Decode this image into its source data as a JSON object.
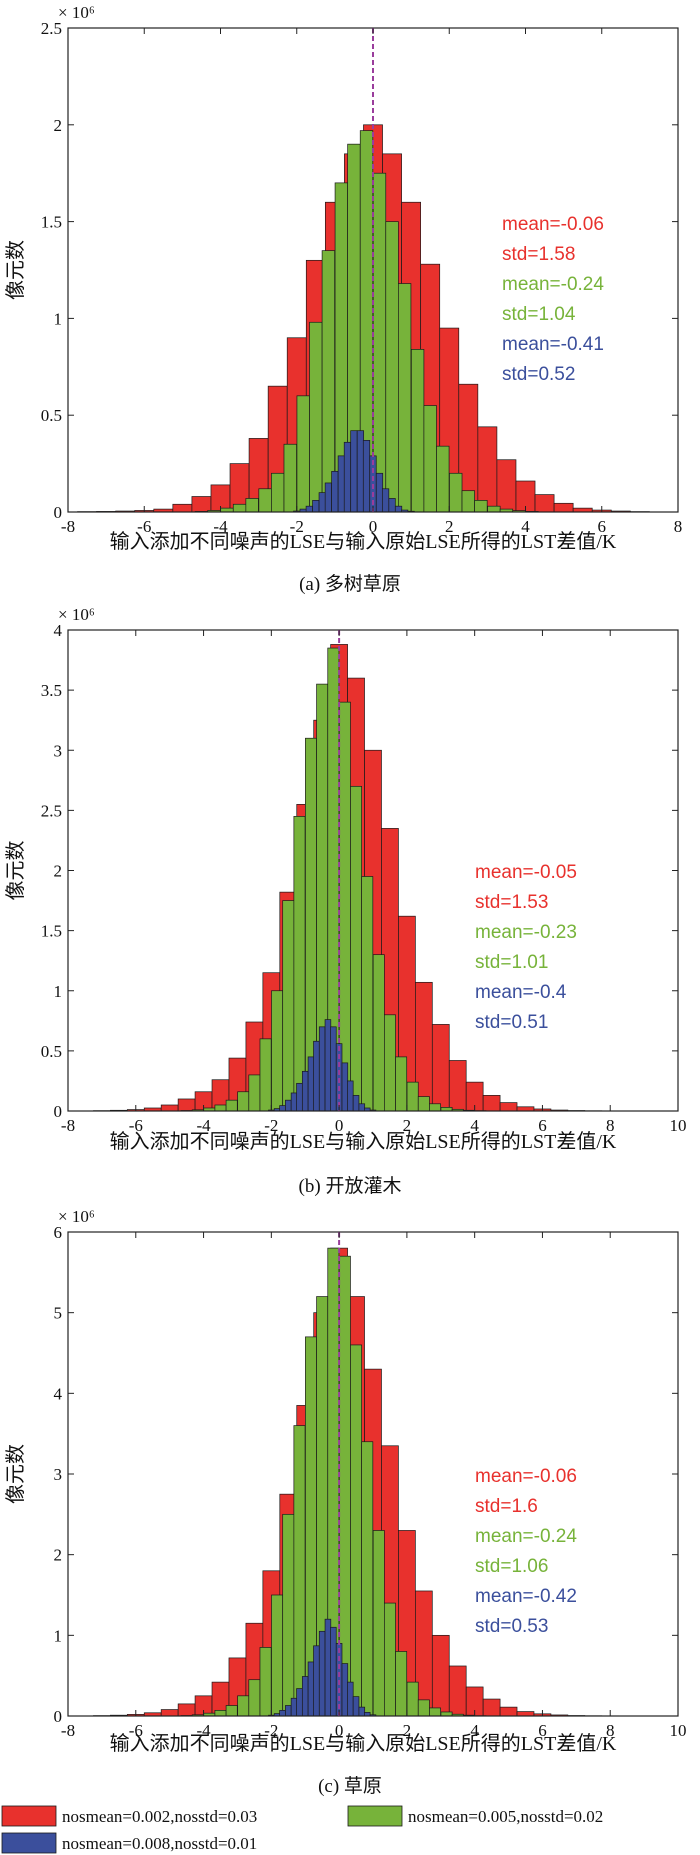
{
  "colors": {
    "red": "#e8312d",
    "green": "#77b33a",
    "blue": "#3b4f9c",
    "median": "#9a3d9c"
  },
  "legend": [
    {
      "label": "nosmean=0.002,nosstd=0.03",
      "color": "#e8312d"
    },
    {
      "label": "nosmean=0.005,nosstd=0.02",
      "color": "#77b33a"
    },
    {
      "label": "nosmean=0.008,nosstd=0.01",
      "color": "#3b4f9c"
    }
  ],
  "chart_data": [
    {
      "type": "bar",
      "caption": "(a) 多树草原",
      "xlabel": "输入添加不同噪声的LSE与输入原始LSE所得的LST差值/K",
      "ylabel": "像元数",
      "y_exponent": "× 10⁶",
      "xlim": [
        -8,
        8
      ],
      "ylim": [
        0,
        2.5
      ],
      "xticks": [
        "-8",
        "-6",
        "-4",
        "-2",
        "0",
        "2",
        "4",
        "6",
        "8"
      ],
      "yticks": [
        "0",
        "0.5",
        "1",
        "1.5",
        "2",
        "2.5"
      ],
      "median_line_x": 0,
      "series": [
        {
          "name": "nosmean=0.002,nosstd=0.03",
          "bin_width": 0.5,
          "x": [
            -7.5,
            -7,
            -6.5,
            -6,
            -5.5,
            -5,
            -4.5,
            -4,
            -3.5,
            -3,
            -2.5,
            -2,
            -1.5,
            -1,
            -0.5,
            0,
            0.5,
            1,
            1.5,
            2,
            2.5,
            3,
            3.5,
            4,
            4.5,
            5,
            5.5,
            6,
            6.5,
            7
          ],
          "values": [
            0.002,
            0.003,
            0.005,
            0.008,
            0.015,
            0.04,
            0.08,
            0.14,
            0.25,
            0.38,
            0.65,
            0.9,
            1.3,
            1.6,
            1.85,
            2.0,
            1.85,
            1.6,
            1.28,
            0.95,
            0.66,
            0.44,
            0.27,
            0.16,
            0.09,
            0.045,
            0.02,
            0.01,
            0.005,
            0.002
          ]
        },
        {
          "name": "nosmean=0.005,nosstd=0.02",
          "bin_width": 0.33,
          "x": [
            -4.5,
            -4.17,
            -3.83,
            -3.5,
            -3.17,
            -2.83,
            -2.5,
            -2.17,
            -1.83,
            -1.5,
            -1.17,
            -0.83,
            -0.5,
            -0.17,
            0.17,
            0.5,
            0.83,
            1.17,
            1.5,
            1.83,
            2.17,
            2.5,
            2.83,
            3.17,
            3.5,
            3.83,
            4.17
          ],
          "values": [
            0.003,
            0.008,
            0.02,
            0.04,
            0.07,
            0.12,
            0.2,
            0.35,
            0.6,
            0.98,
            1.35,
            1.7,
            1.9,
            1.97,
            1.75,
            1.5,
            1.18,
            0.84,
            0.55,
            0.34,
            0.2,
            0.11,
            0.06,
            0.03,
            0.015,
            0.007,
            0.003
          ]
        },
        {
          "name": "nosmean=0.008,nosstd=0.01",
          "bin_width": 0.17,
          "x": [
            -2,
            -1.83,
            -1.67,
            -1.5,
            -1.33,
            -1.17,
            -1,
            -0.83,
            -0.67,
            -0.5,
            -0.33,
            -0.17,
            0,
            0.17,
            0.33,
            0.5,
            0.67,
            0.83,
            1
          ],
          "values": [
            0.005,
            0.015,
            0.03,
            0.06,
            0.1,
            0.15,
            0.21,
            0.29,
            0.36,
            0.42,
            0.42,
            0.37,
            0.29,
            0.2,
            0.12,
            0.07,
            0.03,
            0.01,
            0.004
          ]
        }
      ],
      "stats": [
        {
          "text": "mean=-0.06",
          "color": "#e8312d"
        },
        {
          "text": "std=1.58",
          "color": "#e8312d"
        },
        {
          "text": "mean=-0.24",
          "color": "#77b33a"
        },
        {
          "text": "std=1.04",
          "color": "#77b33a"
        },
        {
          "text": "mean=-0.41",
          "color": "#3b4f9c"
        },
        {
          "text": "std=0.52",
          "color": "#3b4f9c"
        }
      ]
    },
    {
      "type": "bar",
      "caption": "(b) 开放灌木",
      "xlabel": "输入添加不同噪声的LSE与输入原始LSE所得的LST差值/K",
      "ylabel": "像元数",
      "y_exponent": "× 10⁶",
      "xlim": [
        -8,
        10
      ],
      "ylim": [
        0,
        4
      ],
      "xticks": [
        "-8",
        "-6",
        "-4",
        "-2",
        "0",
        "2",
        "4",
        "6",
        "8",
        "10"
      ],
      "yticks": [
        "0",
        "0.5",
        "1",
        "1.5",
        "2",
        "2.5",
        "3",
        "3.5",
        "4"
      ],
      "median_line_x": 0,
      "series": [
        {
          "name": "nosmean=0.002,nosstd=0.03",
          "bin_width": 0.5,
          "x": [
            -7,
            -6.5,
            -6,
            -5.5,
            -5,
            -4.5,
            -4,
            -3.5,
            -3,
            -2.5,
            -2,
            -1.5,
            -1,
            -0.5,
            0,
            0.5,
            1,
            1.5,
            2,
            2.5,
            3,
            3.5,
            4,
            4.5,
            5,
            5.5,
            6,
            6.5,
            7,
            7.5,
            8,
            8.5
          ],
          "values": [
            0.003,
            0.006,
            0.012,
            0.025,
            0.05,
            0.1,
            0.16,
            0.26,
            0.44,
            0.74,
            1.15,
            1.82,
            2.55,
            3.25,
            3.88,
            3.6,
            3.0,
            2.35,
            1.62,
            1.07,
            0.72,
            0.42,
            0.24,
            0.13,
            0.07,
            0.035,
            0.017,
            0.008,
            0.004,
            0.002,
            0.001,
            0.001
          ]
        },
        {
          "name": "nosmean=0.005,nosstd=0.02",
          "bin_width": 0.33,
          "x": [
            -4.5,
            -4.17,
            -3.83,
            -3.5,
            -3.17,
            -2.83,
            -2.5,
            -2.17,
            -1.83,
            -1.5,
            -1.17,
            -0.83,
            -0.5,
            -0.17,
            0.17,
            0.5,
            0.83,
            1.17,
            1.5,
            1.83,
            2.17,
            2.5,
            2.83,
            3.17,
            3.5,
            3.83,
            4.17
          ],
          "values": [
            0.004,
            0.01,
            0.025,
            0.05,
            0.09,
            0.16,
            0.3,
            0.6,
            1.0,
            1.75,
            2.45,
            3.1,
            3.55,
            3.85,
            3.4,
            2.7,
            1.95,
            1.3,
            0.8,
            0.45,
            0.24,
            0.12,
            0.06,
            0.03,
            0.014,
            0.006,
            0.003
          ]
        },
        {
          "name": "nosmean=0.008,nosstd=0.01",
          "bin_width": 0.17,
          "x": [
            -2,
            -1.83,
            -1.67,
            -1.5,
            -1.33,
            -1.17,
            -1,
            -0.83,
            -0.67,
            -0.5,
            -0.33,
            -0.17,
            0,
            0.17,
            0.33,
            0.5,
            0.67,
            0.83,
            1
          ],
          "values": [
            0.008,
            0.02,
            0.045,
            0.09,
            0.15,
            0.23,
            0.33,
            0.45,
            0.58,
            0.7,
            0.76,
            0.7,
            0.56,
            0.4,
            0.25,
            0.13,
            0.06,
            0.025,
            0.008
          ]
        }
      ],
      "stats": [
        {
          "text": "mean=-0.05",
          "color": "#e8312d"
        },
        {
          "text": "std=1.53",
          "color": "#e8312d"
        },
        {
          "text": "mean=-0.23",
          "color": "#77b33a"
        },
        {
          "text": "std=1.01",
          "color": "#77b33a"
        },
        {
          "text": "mean=-0.4",
          "color": "#3b4f9c"
        },
        {
          "text": "std=0.51",
          "color": "#3b4f9c"
        }
      ]
    },
    {
      "type": "bar",
      "caption": "(c) 草原",
      "xlabel": "输入添加不同噪声的LSE与输入原始LSE所得的LST差值/K",
      "ylabel": "像元数",
      "y_exponent": "× 10⁶",
      "xlim": [
        -8,
        10
      ],
      "ylim": [
        0,
        6
      ],
      "xticks": [
        "-8",
        "-6",
        "-4",
        "-2",
        "0",
        "2",
        "4",
        "6",
        "8",
        "10"
      ],
      "yticks": [
        "0",
        "1",
        "2",
        "3",
        "4",
        "5",
        "6"
      ],
      "median_line_x": 0,
      "series": [
        {
          "name": "nosmean=0.002,nosstd=0.03",
          "bin_width": 0.5,
          "x": [
            -7,
            -6.5,
            -6,
            -5.5,
            -5,
            -4.5,
            -4,
            -3.5,
            -3,
            -2.5,
            -2,
            -1.5,
            -1,
            -0.5,
            0,
            0.5,
            1,
            1.5,
            2,
            2.5,
            3,
            3.5,
            4,
            4.5,
            5,
            5.5,
            6,
            6.5,
            7,
            7.5,
            8,
            8.5
          ],
          "values": [
            0.005,
            0.01,
            0.02,
            0.04,
            0.08,
            0.15,
            0.25,
            0.42,
            0.72,
            1.15,
            1.8,
            2.75,
            3.85,
            5.0,
            5.8,
            5.2,
            4.3,
            3.35,
            2.3,
            1.55,
            1.0,
            0.62,
            0.36,
            0.21,
            0.11,
            0.055,
            0.027,
            0.013,
            0.006,
            0.003,
            0.002,
            0.001
          ]
        },
        {
          "name": "nosmean=0.005,nosstd=0.02",
          "bin_width": 0.33,
          "x": [
            -4.5,
            -4.17,
            -3.83,
            -3.5,
            -3.17,
            -2.83,
            -2.5,
            -2.17,
            -1.83,
            -1.5,
            -1.17,
            -0.83,
            -0.5,
            -0.17,
            0.17,
            0.5,
            0.83,
            1.17,
            1.5,
            1.83,
            2.17,
            2.5,
            2.83,
            3.17,
            3.5,
            3.83,
            4.17
          ],
          "values": [
            0.006,
            0.015,
            0.035,
            0.07,
            0.13,
            0.25,
            0.45,
            0.85,
            1.5,
            2.5,
            3.6,
            4.7,
            5.2,
            5.8,
            5.7,
            4.6,
            3.4,
            2.3,
            1.4,
            0.8,
            0.42,
            0.2,
            0.1,
            0.05,
            0.022,
            0.01,
            0.004
          ]
        },
        {
          "name": "nosmean=0.008,nosstd=0.01",
          "bin_width": 0.17,
          "x": [
            -2,
            -1.83,
            -1.67,
            -1.5,
            -1.33,
            -1.17,
            -1,
            -0.83,
            -0.67,
            -0.5,
            -0.33,
            -0.17,
            0,
            0.17,
            0.33,
            0.5,
            0.67,
            0.83,
            1
          ],
          "values": [
            0.01,
            0.03,
            0.07,
            0.13,
            0.22,
            0.34,
            0.49,
            0.67,
            0.87,
            1.05,
            1.2,
            1.1,
            0.9,
            0.65,
            0.42,
            0.24,
            0.11,
            0.045,
            0.015
          ]
        }
      ],
      "stats": [
        {
          "text": "mean=-0.06",
          "color": "#e8312d"
        },
        {
          "text": "std=1.6",
          "color": "#e8312d"
        },
        {
          "text": "mean=-0.24",
          "color": "#77b33a"
        },
        {
          "text": "std=1.06",
          "color": "#77b33a"
        },
        {
          "text": "mean=-0.42",
          "color": "#3b4f9c"
        },
        {
          "text": "std=0.53",
          "color": "#3b4f9c"
        }
      ]
    }
  ]
}
